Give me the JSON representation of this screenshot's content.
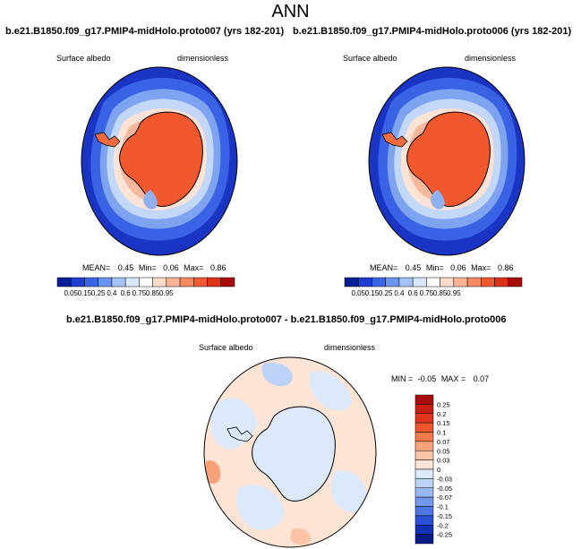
{
  "main_title": "ANN",
  "panels": [
    {
      "title": "b.e21.B1850.f09_g17.PMIP4-midHolo.proto007 (yrs 182-201)",
      "variable": "Surface albedo",
      "units": "dimensionless",
      "stats": {
        "mean_label": "MEAN=",
        "mean": "0.45",
        "min_label": "Min=",
        "min": "0.06",
        "max_label": "Max=",
        "max": "0.86"
      }
    },
    {
      "title": "b.e21.B1850.f09_g17.PMIP4-midHolo.proto006 (yrs 182-201)",
      "variable": "Surface albedo",
      "units": "dimensionless",
      "stats": {
        "mean_label": "MEAN=",
        "mean": "0.45",
        "min_label": "Min=",
        "min": "0.06",
        "max_label": "Max=",
        "max": "0.86"
      }
    }
  ],
  "diff_panel": {
    "title": "b.e21.B1850.f09_g17.PMIP4-midHolo.proto007 - b.e21.B1850.f09_g17.PMIP4-midHolo.proto006",
    "variable": "Surface albedo",
    "units": "dimensionless",
    "minmax": {
      "min_label": "MIN =",
      "min": "-0.05",
      "max_label": "MAX =",
      "max": "0.07"
    }
  },
  "chart_data": [
    {
      "type": "heatmap",
      "name": "proto007 surface albedo",
      "projection": "south polar stereographic",
      "colorbar": {
        "orientation": "horizontal",
        "labels": [
          "0.05",
          "0.15",
          "0.25",
          "0.4",
          "0.6",
          "0.75",
          "0.85",
          "0.95"
        ],
        "colors": [
          "#081d96",
          "#1f3ecf",
          "#3c65e6",
          "#6b93f0",
          "#a3c3f6",
          "#d7e8fb",
          "#ffffff",
          "#fcdac8",
          "#f9b496",
          "#f58a64",
          "#f05a32",
          "#dc321a",
          "#a80c0c"
        ]
      }
    },
    {
      "type": "heatmap",
      "name": "proto006 surface albedo",
      "projection": "south polar stereographic",
      "colorbar": {
        "orientation": "horizontal",
        "labels": [
          "0.05",
          "0.15",
          "0.25",
          "0.4",
          "0.6",
          "0.75",
          "0.85",
          "0.95"
        ],
        "colors": [
          "#081d96",
          "#1f3ecf",
          "#3c65e6",
          "#6b93f0",
          "#a3c3f6",
          "#d7e8fb",
          "#ffffff",
          "#fcdac8",
          "#f9b496",
          "#f58a64",
          "#f05a32",
          "#dc321a",
          "#a80c0c"
        ]
      }
    },
    {
      "type": "heatmap",
      "name": "difference proto007 - proto006",
      "projection": "south polar stereographic",
      "colorbar": {
        "orientation": "vertical",
        "labels": [
          "0.25",
          "0.2",
          "0.15",
          "0.1",
          "0.07",
          "0.05",
          "0.03",
          "0",
          "-0.03",
          "-0.05",
          "-0.07",
          "-0.1",
          "-0.15",
          "-0.2",
          "-0.25"
        ],
        "colors": [
          "#a80c0c",
          "#c81e14",
          "#e0361e",
          "#f0552c",
          "#f57a4a",
          "#f9a27a",
          "#fbc4a6",
          "#fde4d4",
          "#dbe9fb",
          "#bcd3f7",
          "#98b9f2",
          "#7298ec",
          "#4d75e3",
          "#2a50d6",
          "#1430b4",
          "#081a84"
        ]
      }
    }
  ]
}
